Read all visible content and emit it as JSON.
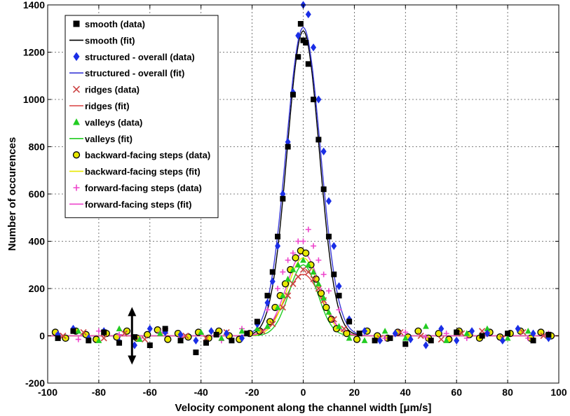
{
  "chart_data": {
    "type": "scatter",
    "title": "",
    "xlabel": "Velocity component along the channel width [μm/s]",
    "ylabel": "Number of occurences",
    "xlim": [
      -100,
      100
    ],
    "ylim": [
      -200,
      1400
    ],
    "xticks": [
      -100,
      -80,
      -60,
      -40,
      -20,
      0,
      20,
      40,
      60,
      80,
      100
    ],
    "yticks": [
      -200,
      0,
      200,
      400,
      600,
      800,
      1000,
      1200,
      1400
    ],
    "grid": true,
    "legend_position": "top-left",
    "annotation": "double-headed vertical arrow at x = -67 spanning y = -110 to 110",
    "series": [
      {
        "name": "smooth (data)",
        "kind": "markers",
        "marker": "square",
        "color": "#000000",
        "x": [
          -96,
          -90,
          -84,
          -78,
          -72,
          -66,
          -60,
          -54,
          -48,
          -42,
          -38,
          -34,
          -28,
          -22,
          -18,
          -14,
          -12,
          -10,
          -8,
          -6,
          -4,
          -2,
          -1,
          0,
          1,
          2,
          4,
          6,
          8,
          10,
          12,
          14,
          18,
          22,
          28,
          34,
          40,
          50,
          60,
          70,
          80,
          90,
          96
        ],
        "y": [
          -10,
          20,
          -20,
          15,
          -30,
          -5,
          -40,
          30,
          -20,
          -70,
          -30,
          5,
          -20,
          10,
          60,
          170,
          270,
          420,
          580,
          800,
          1020,
          1180,
          1320,
          1250,
          1240,
          1150,
          1000,
          830,
          620,
          420,
          260,
          170,
          60,
          10,
          -20,
          -10,
          -35,
          -20,
          15,
          0,
          10,
          -20,
          5
        ]
      },
      {
        "name": "smooth (fit)",
        "kind": "line",
        "color": "#000000",
        "mu": 0,
        "sigma": 6.3,
        "amplitude": 1290,
        "baseline": 0
      },
      {
        "name": "structured - overall (data)",
        "kind": "markers",
        "marker": "diamond",
        "color": "#1a2ee6",
        "x": [
          -96,
          -90,
          -84,
          -78,
          -72,
          -66,
          -60,
          -54,
          -48,
          -42,
          -36,
          -30,
          -24,
          -18,
          -14,
          -12,
          -10,
          -8,
          -6,
          -4,
          -2,
          0,
          2,
          4,
          6,
          8,
          10,
          12,
          14,
          18,
          24,
          30,
          36,
          42,
          48,
          54,
          60,
          66,
          72,
          78,
          84,
          90,
          96
        ],
        "y": [
          5,
          30,
          -10,
          20,
          -25,
          -40,
          30,
          15,
          5,
          -20,
          20,
          10,
          -10,
          50,
          140,
          230,
          380,
          600,
          820,
          1030,
          1270,
          1400,
          1360,
          1220,
          1000,
          780,
          570,
          380,
          210,
          70,
          20,
          -20,
          10,
          -15,
          -40,
          30,
          -20,
          20,
          10,
          -20,
          30,
          10,
          -10
        ]
      },
      {
        "name": "structured - overall (fit)",
        "kind": "line",
        "color": "#3a3ad8",
        "mu": 0,
        "sigma": 6.7,
        "amplitude": 1305,
        "baseline": 0
      },
      {
        "name": "ridges (data)",
        "kind": "markers",
        "marker": "x",
        "color": "#cc4444",
        "x": [
          -94,
          -86,
          -78,
          -70,
          -62,
          -54,
          -46,
          -38,
          -30,
          -22,
          -16,
          -12,
          -8,
          -6,
          -4,
          -2,
          0,
          2,
          4,
          6,
          8,
          12,
          16,
          22,
          30,
          38,
          46,
          54,
          62,
          70,
          78,
          86,
          94
        ],
        "y": [
          0,
          15,
          -10,
          10,
          -15,
          20,
          0,
          -10,
          15,
          10,
          20,
          50,
          120,
          170,
          220,
          250,
          280,
          270,
          240,
          200,
          150,
          70,
          30,
          10,
          -10,
          15,
          0,
          -15,
          10,
          20,
          -10,
          15,
          0
        ]
      },
      {
        "name": "ridges (fit)",
        "kind": "line",
        "color": "#d84040",
        "mu": 0,
        "sigma": 7.0,
        "amplitude": 260,
        "baseline": 0
      },
      {
        "name": "valleys (data)",
        "kind": "markers",
        "marker": "triangle",
        "color": "#22cc22",
        "x": [
          -96,
          -88,
          -80,
          -72,
          -64,
          -56,
          -48,
          -40,
          -32,
          -24,
          -18,
          -14,
          -10,
          -8,
          -6,
          -4,
          -2,
          0,
          2,
          4,
          6,
          8,
          10,
          14,
          18,
          24,
          32,
          40,
          48,
          56,
          64,
          72,
          80,
          88,
          96
        ],
        "y": [
          -10,
          20,
          -20,
          30,
          -15,
          10,
          -20,
          15,
          -10,
          20,
          30,
          40,
          120,
          170,
          240,
          280,
          300,
          320,
          300,
          270,
          220,
          160,
          100,
          40,
          -10,
          -20,
          20,
          -10,
          40,
          -20,
          10,
          30,
          -10,
          20,
          0
        ]
      },
      {
        "name": "valleys (fit)",
        "kind": "line",
        "color": "#22cc22",
        "mu": 0,
        "sigma": 5.6,
        "amplitude": 300,
        "baseline": 0
      },
      {
        "name": "backward-facing steps (data)",
        "kind": "markers",
        "marker": "circle",
        "color": "#000000",
        "fill": "#e8e800",
        "x": [
          -97,
          -93,
          -89,
          -85,
          -81,
          -77,
          -73,
          -69,
          -65,
          -61,
          -57,
          -53,
          -49,
          -45,
          -41,
          -37,
          -33,
          -29,
          -25,
          -21,
          -17,
          -13,
          -11,
          -9,
          -7,
          -5,
          -3,
          -1,
          1,
          3,
          5,
          7,
          9,
          11,
          13,
          17,
          21,
          25,
          29,
          33,
          37,
          41,
          45,
          49,
          53,
          57,
          61,
          65,
          69,
          73,
          77,
          81,
          85,
          89,
          93,
          97
        ],
        "y": [
          15,
          -10,
          20,
          5,
          -15,
          10,
          -5,
          20,
          -10,
          5,
          25,
          -15,
          10,
          -5,
          15,
          -10,
          20,
          0,
          -15,
          10,
          20,
          60,
          120,
          170,
          220,
          280,
          330,
          360,
          350,
          300,
          240,
          180,
          120,
          70,
          30,
          10,
          -15,
          20,
          0,
          -10,
          15,
          -5,
          20,
          -10,
          10,
          -15,
          20,
          5,
          -10,
          15,
          -5,
          10,
          20,
          -10,
          15,
          0
        ]
      },
      {
        "name": "backward-facing steps (fit)",
        "kind": "line",
        "color": "#e8e800",
        "mu": 0,
        "sigma": 6.2,
        "amplitude": 330,
        "baseline": 0
      },
      {
        "name": "forward-facing steps (data)",
        "kind": "markers",
        "marker": "plus",
        "color": "#ee44cc",
        "x": [
          -96,
          -88,
          -80,
          -72,
          -64,
          -56,
          -48,
          -40,
          -32,
          -24,
          -18,
          -14,
          -10,
          -8,
          -6,
          -4,
          -2,
          0,
          2,
          4,
          6,
          8,
          10,
          14,
          18,
          24,
          32,
          40,
          48,
          56,
          64,
          72,
          80,
          88,
          96
        ],
        "y": [
          10,
          -15,
          20,
          5,
          -10,
          15,
          -5,
          10,
          -20,
          30,
          60,
          110,
          200,
          270,
          320,
          350,
          400,
          400,
          450,
          380,
          320,
          260,
          190,
          110,
          60,
          20,
          -10,
          15,
          -5,
          10,
          -10,
          15,
          5,
          -10,
          10
        ]
      },
      {
        "name": "forward-facing steps (fit)",
        "kind": "line",
        "color": "#ee44cc",
        "mu": 0,
        "sigma": 6.5,
        "amplitude": 350,
        "baseline": 0
      }
    ]
  }
}
